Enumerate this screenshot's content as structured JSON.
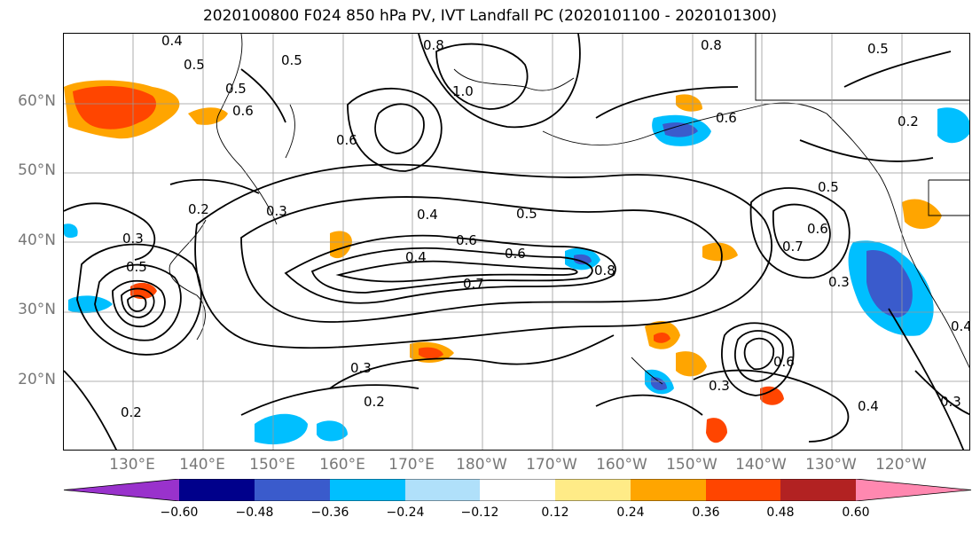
{
  "title": "2020100800 F024 850 hPa PV, IVT Landfall PC (2020101100 - 2020101300)",
  "lat_labels": [
    "60°N",
    "50°N",
    "40°N",
    "30°N",
    "20°N"
  ],
  "lon_labels": [
    "130°E",
    "140°E",
    "150°E",
    "160°E",
    "170°E",
    "180°W",
    "170°W",
    "160°W",
    "150°W",
    "140°W",
    "130°W",
    "120°W"
  ],
  "colorbar": {
    "ticks": [
      "−0.60",
      "−0.48",
      "−0.36",
      "−0.24",
      "−0.12",
      "0.12",
      "0.24",
      "0.36",
      "0.48",
      "0.60"
    ],
    "colors": [
      "#9932cc",
      "#00008b",
      "#3a5bcc",
      "#00bfff",
      "#b0e0fa",
      "#ffffff",
      "#ffeb87",
      "#ffa500",
      "#ff4500",
      "#b22222",
      "#ff88b0"
    ]
  },
  "contour_labels": [
    "0.4",
    "0.5",
    "0.5",
    "0.8",
    "1.0",
    "0.8",
    "0.5",
    "0.2",
    "0.5",
    "0.6",
    "0.6",
    "0.6",
    "0.3",
    "0.2",
    "0.3",
    "0.5",
    "0.4",
    "0.5",
    "0.6",
    "0.4",
    "0.6",
    "0.7",
    "0.8",
    "0.5",
    "0.7",
    "0.6",
    "0.3",
    "0.3",
    "0.2",
    "0.4",
    "0.3",
    "0.6",
    "0.2",
    "0.4",
    "0.3"
  ]
}
